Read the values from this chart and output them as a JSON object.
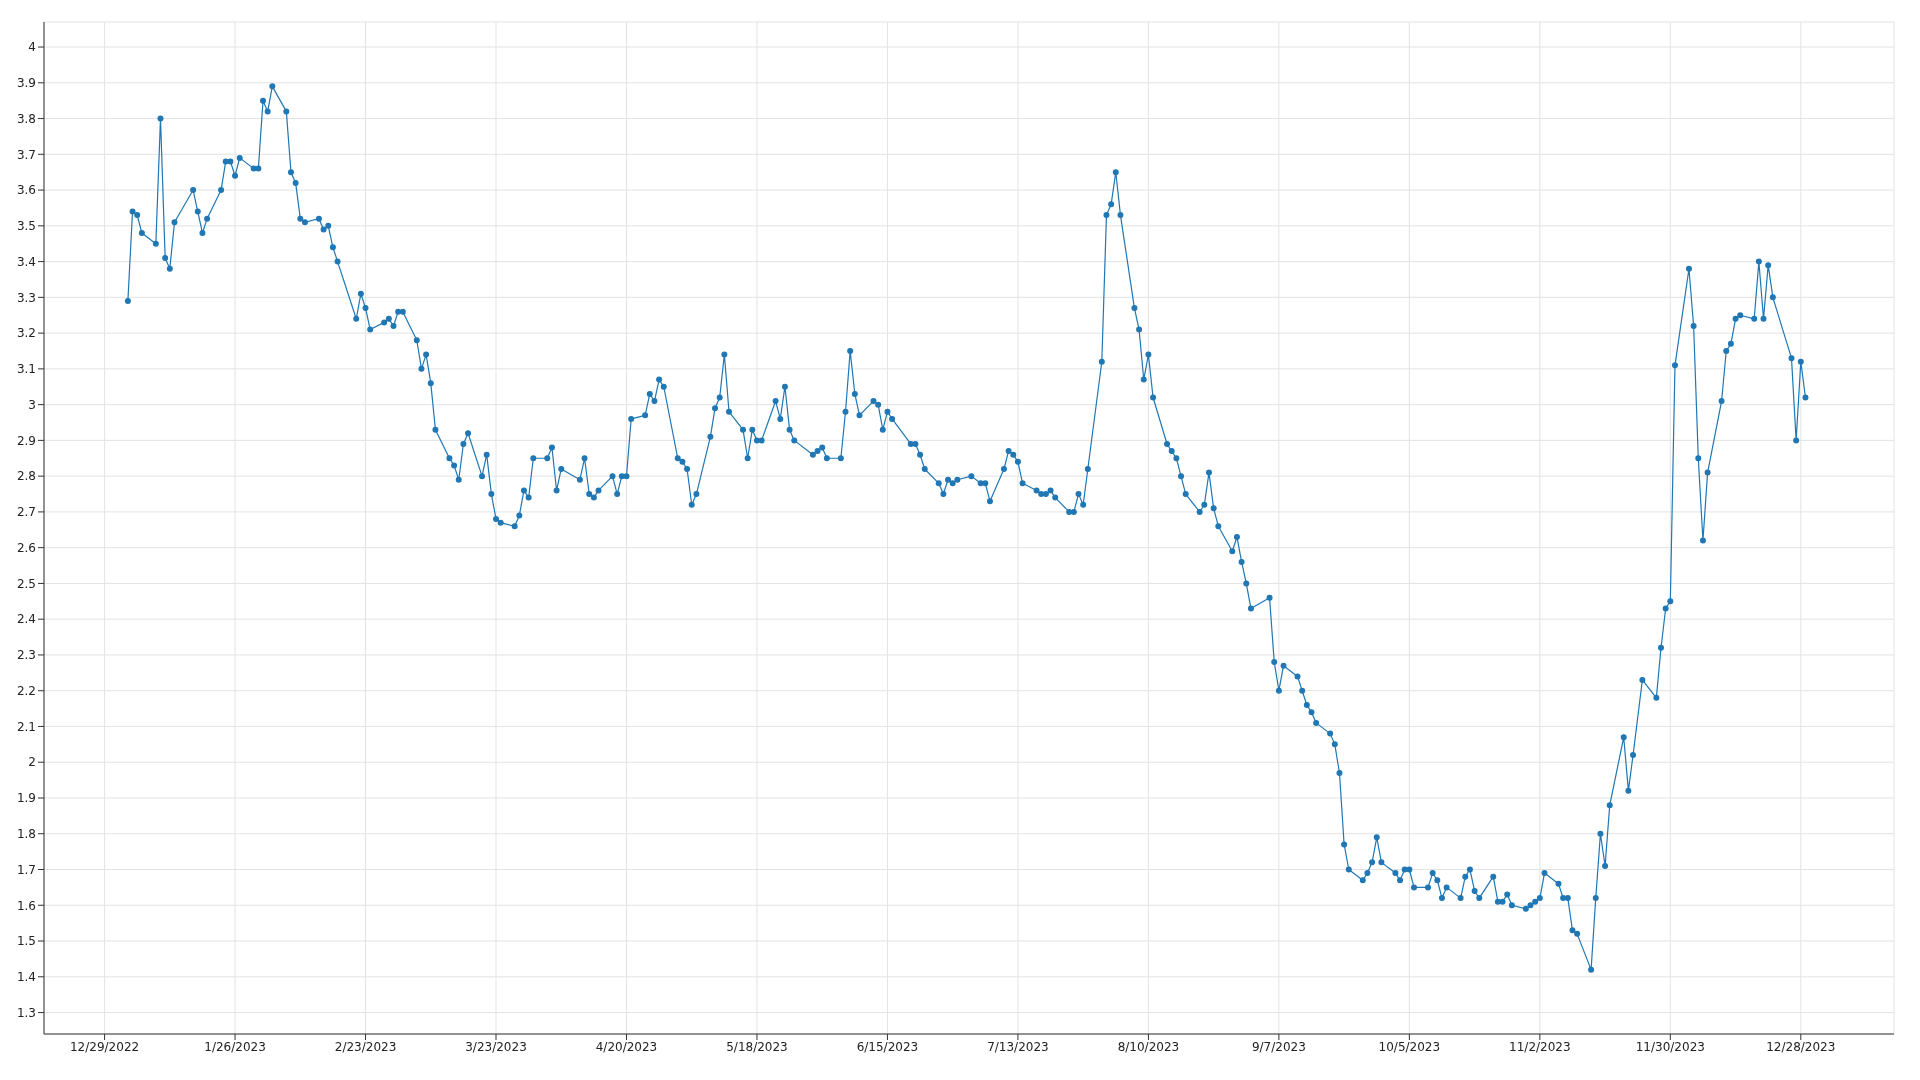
{
  "chart_data": {
    "type": "line",
    "x": [
      "2023-01-03",
      "2023-01-04",
      "2023-01-05",
      "2023-01-06",
      "2023-01-09",
      "2023-01-10",
      "2023-01-11",
      "2023-01-12",
      "2023-01-13",
      "2023-01-17",
      "2023-01-18",
      "2023-01-19",
      "2023-01-20",
      "2023-01-23",
      "2023-01-24",
      "2023-01-25",
      "2023-01-26",
      "2023-01-27",
      "2023-01-30",
      "2023-01-31",
      "2023-02-01",
      "2023-02-02",
      "2023-02-03",
      "2023-02-06",
      "2023-02-07",
      "2023-02-08",
      "2023-02-09",
      "2023-02-10",
      "2023-02-13",
      "2023-02-14",
      "2023-02-15",
      "2023-02-16",
      "2023-02-17",
      "2023-02-21",
      "2023-02-22",
      "2023-02-23",
      "2023-02-24",
      "2023-02-27",
      "2023-02-28",
      "2023-03-01",
      "2023-03-02",
      "2023-03-03",
      "2023-03-06",
      "2023-03-07",
      "2023-03-08",
      "2023-03-09",
      "2023-03-10",
      "2023-03-13",
      "2023-03-14",
      "2023-03-15",
      "2023-03-16",
      "2023-03-17",
      "2023-03-20",
      "2023-03-21",
      "2023-03-22",
      "2023-03-23",
      "2023-03-24",
      "2023-03-27",
      "2023-03-28",
      "2023-03-29",
      "2023-03-30",
      "2023-03-31",
      "2023-04-03",
      "2023-04-04",
      "2023-04-05",
      "2023-04-06",
      "2023-04-10",
      "2023-04-11",
      "2023-04-12",
      "2023-04-13",
      "2023-04-14",
      "2023-04-17",
      "2023-04-18",
      "2023-04-19",
      "2023-04-20",
      "2023-04-21",
      "2023-04-24",
      "2023-04-25",
      "2023-04-26",
      "2023-04-27",
      "2023-04-28",
      "2023-05-01",
      "2023-05-02",
      "2023-05-03",
      "2023-05-04",
      "2023-05-05",
      "2023-05-08",
      "2023-05-09",
      "2023-05-10",
      "2023-05-11",
      "2023-05-12",
      "2023-05-15",
      "2023-05-16",
      "2023-05-17",
      "2023-05-18",
      "2023-05-19",
      "2023-05-22",
      "2023-05-23",
      "2023-05-24",
      "2023-05-25",
      "2023-05-26",
      "2023-05-30",
      "2023-05-31",
      "2023-06-01",
      "2023-06-02",
      "2023-06-05",
      "2023-06-06",
      "2023-06-07",
      "2023-06-08",
      "2023-06-09",
      "2023-06-12",
      "2023-06-13",
      "2023-06-14",
      "2023-06-15",
      "2023-06-16",
      "2023-06-20",
      "2023-06-21",
      "2023-06-22",
      "2023-06-23",
      "2023-06-26",
      "2023-06-27",
      "2023-06-28",
      "2023-06-29",
      "2023-06-30",
      "2023-07-03",
      "2023-07-05",
      "2023-07-06",
      "2023-07-07",
      "2023-07-10",
      "2023-07-11",
      "2023-07-12",
      "2023-07-13",
      "2023-07-14",
      "2023-07-17",
      "2023-07-18",
      "2023-07-19",
      "2023-07-20",
      "2023-07-21",
      "2023-07-24",
      "2023-07-25",
      "2023-07-26",
      "2023-07-27",
      "2023-07-28",
      "2023-07-31",
      "2023-08-01",
      "2023-08-02",
      "2023-08-03",
      "2023-08-04",
      "2023-08-07",
      "2023-08-08",
      "2023-08-09",
      "2023-08-10",
      "2023-08-11",
      "2023-08-14",
      "2023-08-15",
      "2023-08-16",
      "2023-08-17",
      "2023-08-18",
      "2023-08-21",
      "2023-08-22",
      "2023-08-23",
      "2023-08-24",
      "2023-08-25",
      "2023-08-28",
      "2023-08-29",
      "2023-08-30",
      "2023-08-31",
      "2023-09-01",
      "2023-09-05",
      "2023-09-06",
      "2023-09-07",
      "2023-09-08",
      "2023-09-11",
      "2023-09-12",
      "2023-09-13",
      "2023-09-14",
      "2023-09-15",
      "2023-09-18",
      "2023-09-19",
      "2023-09-20",
      "2023-09-21",
      "2023-09-22",
      "2023-09-25",
      "2023-09-26",
      "2023-09-27",
      "2023-09-28",
      "2023-09-29",
      "2023-10-02",
      "2023-10-03",
      "2023-10-04",
      "2023-10-05",
      "2023-10-06",
      "2023-10-09",
      "2023-10-10",
      "2023-10-11",
      "2023-10-12",
      "2023-10-13",
      "2023-10-16",
      "2023-10-17",
      "2023-10-18",
      "2023-10-19",
      "2023-10-20",
      "2023-10-23",
      "2023-10-24",
      "2023-10-25",
      "2023-10-26",
      "2023-10-27",
      "2023-10-30",
      "2023-10-31",
      "2023-11-01",
      "2023-11-02",
      "2023-11-03",
      "2023-11-06",
      "2023-11-07",
      "2023-11-08",
      "2023-11-09",
      "2023-11-10",
      "2023-11-13",
      "2023-11-14",
      "2023-11-15",
      "2023-11-16",
      "2023-11-17",
      "2023-11-20",
      "2023-11-21",
      "2023-11-22",
      "2023-11-24",
      "2023-11-27",
      "2023-11-28",
      "2023-11-29",
      "2023-11-30",
      "2023-12-01",
      "2023-12-04",
      "2023-12-05",
      "2023-12-06",
      "2023-12-07",
      "2023-12-08",
      "2023-12-11",
      "2023-12-12",
      "2023-12-13",
      "2023-12-14",
      "2023-12-15",
      "2023-12-18",
      "2023-12-19",
      "2023-12-20",
      "2023-12-21",
      "2023-12-22",
      "2023-12-26",
      "2023-12-27",
      "2023-12-28",
      "2023-12-29"
    ],
    "series": [
      {
        "color": "#1f77b4",
        "values": [
          3.29,
          3.54,
          3.53,
          3.48,
          3.45,
          3.8,
          3.41,
          3.38,
          3.51,
          3.6,
          3.54,
          3.48,
          3.52,
          3.6,
          3.68,
          3.68,
          3.64,
          3.69,
          3.66,
          3.66,
          3.85,
          3.82,
          3.89,
          3.82,
          3.65,
          3.62,
          3.52,
          3.51,
          3.52,
          3.49,
          3.5,
          3.44,
          3.4,
          3.24,
          3.31,
          3.27,
          3.21,
          3.23,
          3.24,
          3.22,
          3.26,
          3.26,
          3.18,
          3.1,
          3.14,
          3.06,
          2.93,
          2.85,
          2.83,
          2.79,
          2.89,
          2.92,
          2.8,
          2.86,
          2.75,
          2.68,
          2.67,
          2.66,
          2.69,
          2.76,
          2.74,
          2.85,
          2.85,
          2.88,
          2.76,
          2.82,
          2.79,
          2.85,
          2.75,
          2.74,
          2.76,
          2.8,
          2.75,
          2.8,
          2.8,
          2.96,
          2.97,
          3.03,
          3.01,
          3.07,
          3.05,
          2.85,
          2.84,
          2.82,
          2.72,
          2.75,
          2.91,
          2.99,
          3.02,
          3.14,
          2.98,
          2.93,
          2.85,
          2.93,
          2.9,
          2.9,
          3.01,
          2.96,
          3.05,
          2.93,
          2.9,
          2.86,
          2.87,
          2.88,
          2.85,
          2.85,
          2.98,
          3.15,
          3.03,
          2.97,
          3.01,
          3.0,
          2.93,
          2.98,
          2.96,
          2.89,
          2.89,
          2.86,
          2.82,
          2.78,
          2.75,
          2.79,
          2.78,
          2.79,
          2.8,
          2.78,
          2.78,
          2.73,
          2.82,
          2.87,
          2.86,
          2.84,
          2.78,
          2.76,
          2.75,
          2.75,
          2.76,
          2.74,
          2.7,
          2.7,
          2.75,
          2.72,
          2.82,
          3.12,
          3.53,
          3.56,
          3.65,
          3.53,
          3.27,
          3.21,
          3.07,
          3.14,
          3.02,
          2.89,
          2.87,
          2.85,
          2.8,
          2.75,
          2.7,
          2.72,
          2.81,
          2.71,
          2.66,
          2.59,
          2.63,
          2.56,
          2.5,
          2.43,
          2.46,
          2.28,
          2.2,
          2.27,
          2.24,
          2.2,
          2.16,
          2.14,
          2.11,
          2.08,
          2.05,
          1.97,
          1.77,
          1.7,
          1.67,
          1.69,
          1.72,
          1.79,
          1.72,
          1.69,
          1.67,
          1.7,
          1.7,
          1.65,
          1.65,
          1.69,
          1.67,
          1.62,
          1.65,
          1.62,
          1.68,
          1.7,
          1.64,
          1.62,
          1.68,
          1.61,
          1.61,
          1.63,
          1.6,
          1.59,
          1.6,
          1.61,
          1.62,
          1.69,
          1.66,
          1.62,
          1.62,
          1.53,
          1.52,
          1.42,
          1.62,
          1.8,
          1.71,
          1.88,
          2.07,
          1.92,
          2.02,
          2.23,
          2.18,
          2.32,
          2.43,
          2.45,
          3.11,
          3.38,
          3.22,
          2.85,
          2.62,
          2.81,
          3.01,
          3.15,
          3.17,
          3.24,
          3.25,
          3.24,
          3.4,
          3.24,
          3.39,
          3.3,
          3.13,
          2.9,
          3.12,
          3.02
        ]
      }
    ],
    "xlim": [
      "2022-12-16",
      "2024-01-17"
    ],
    "xticks": [
      {
        "value": "2022-12-29",
        "label": "12/29/2022"
      },
      {
        "value": "2023-01-26",
        "label": "1/26/2023"
      },
      {
        "value": "2023-02-23",
        "label": "2/23/2023"
      },
      {
        "value": "2023-03-23",
        "label": "3/23/2023"
      },
      {
        "value": "2023-04-20",
        "label": "4/20/2023"
      },
      {
        "value": "2023-05-18",
        "label": "5/18/2023"
      },
      {
        "value": "2023-06-15",
        "label": "6/15/2023"
      },
      {
        "value": "2023-07-13",
        "label": "7/13/2023"
      },
      {
        "value": "2023-08-10",
        "label": "8/10/2023"
      },
      {
        "value": "2023-09-07",
        "label": "9/7/2023"
      },
      {
        "value": "2023-10-05",
        "label": "10/5/2023"
      },
      {
        "value": "2023-11-02",
        "label": "11/2/2023"
      },
      {
        "value": "2023-11-30",
        "label": "11/30/2023"
      },
      {
        "value": "2023-12-28",
        "label": "12/28/2023"
      }
    ],
    "ylim": [
      1.24,
      4.07
    ],
    "yticks": [
      1.3,
      1.4,
      1.5,
      1.6,
      1.7,
      1.8,
      1.9,
      2,
      2.1,
      2.2,
      2.3,
      2.4,
      2.5,
      2.6,
      2.7,
      2.8,
      2.9,
      3,
      3.1,
      3.2,
      3.3,
      3.4,
      3.5,
      3.6,
      3.7,
      3.8,
      3.9,
      4
    ],
    "grid": true,
    "marker": "circle",
    "line_style": "solid"
  }
}
